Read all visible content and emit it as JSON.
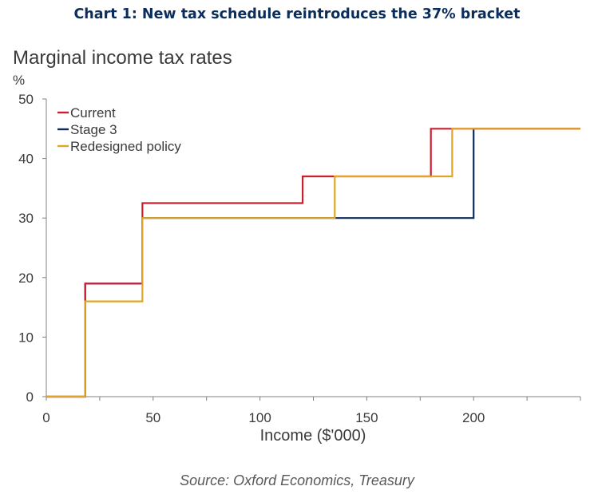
{
  "headline": "Chart 1: New tax schedule reintroduces the 37% bracket",
  "source": "Source: Oxford Economics, Treasury",
  "colors": {
    "current": "#c8202f",
    "stage3": "#0b2d5b",
    "redesigned": "#e0a526"
  },
  "chart_data": {
    "type": "line",
    "subtitle": "Marginal income tax rates",
    "y_unit": "%",
    "xlabel": "Income ($'000)",
    "xlim": [
      0,
      250
    ],
    "ylim": [
      0,
      50
    ],
    "xticks": [
      0,
      50,
      100,
      150,
      200
    ],
    "yticks": [
      0,
      10,
      20,
      30,
      40,
      50
    ],
    "legend_position": "top-left",
    "grid": false,
    "series": [
      {
        "name": "Current",
        "color": "#c8202f",
        "points": [
          [
            0,
            0
          ],
          [
            18.2,
            0
          ],
          [
            18.2,
            19
          ],
          [
            45,
            19
          ],
          [
            45,
            32.5
          ],
          [
            120,
            32.5
          ],
          [
            120,
            37
          ],
          [
            180,
            37
          ],
          [
            180,
            45
          ],
          [
            250,
            45
          ]
        ]
      },
      {
        "name": "Stage 3",
        "color": "#0b2d5b",
        "points": [
          [
            0,
            0
          ],
          [
            18.2,
            0
          ],
          [
            18.2,
            19
          ],
          [
            45,
            19
          ],
          [
            45,
            30
          ],
          [
            200,
            30
          ],
          [
            200,
            45
          ],
          [
            250,
            45
          ]
        ]
      },
      {
        "name": "Redesigned policy",
        "color": "#e0a526",
        "points": [
          [
            0,
            0
          ],
          [
            18.2,
            0
          ],
          [
            18.2,
            16
          ],
          [
            45,
            16
          ],
          [
            45,
            30
          ],
          [
            135,
            30
          ],
          [
            135,
            37
          ],
          [
            190,
            37
          ],
          [
            190,
            45
          ],
          [
            250,
            45
          ]
        ]
      }
    ]
  }
}
